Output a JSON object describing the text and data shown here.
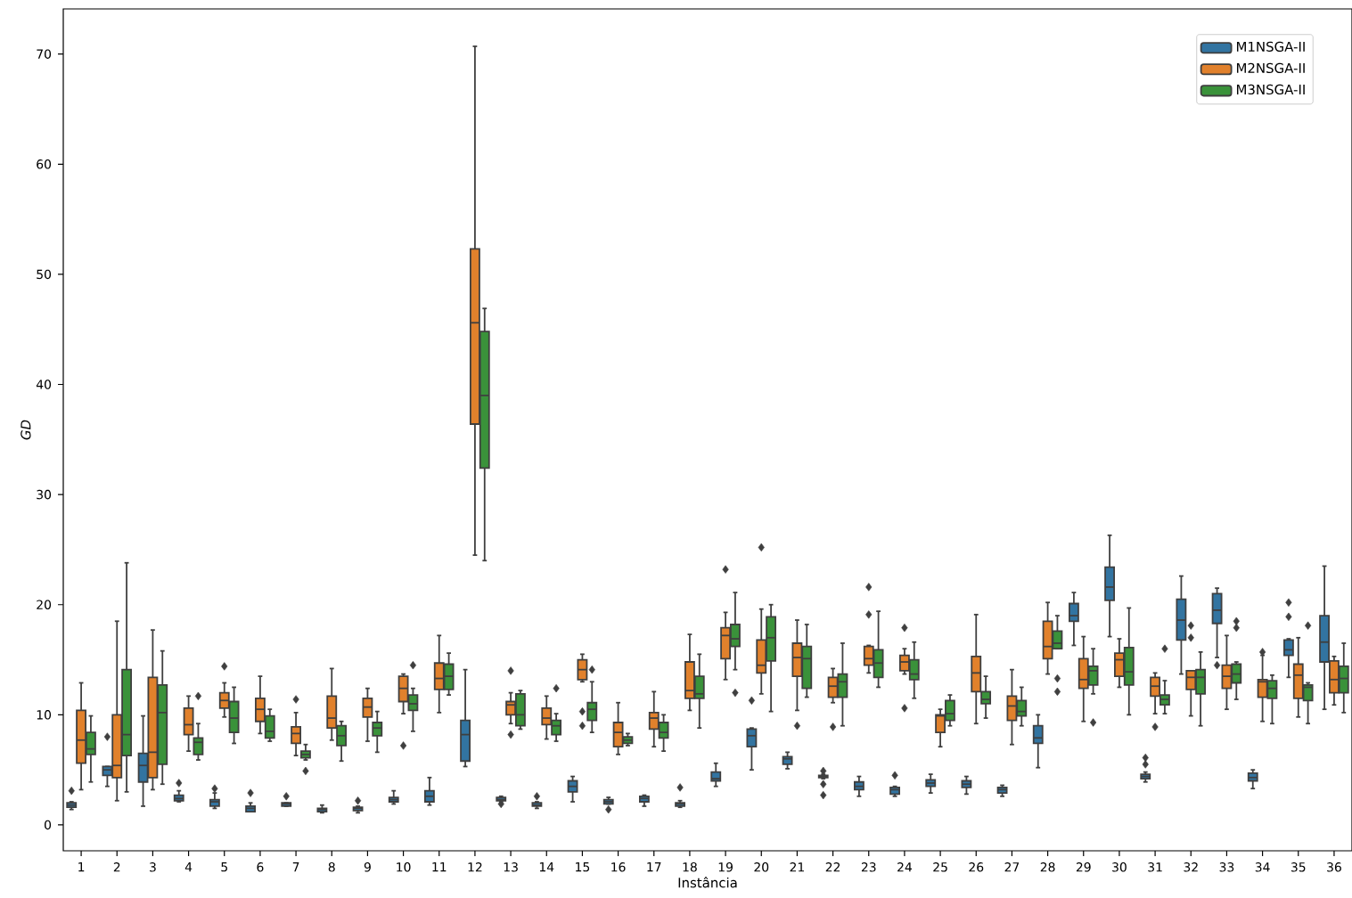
{
  "chart_data": {
    "type": "box",
    "xlabel": "Instância",
    "ylabel": "GD",
    "categories": [
      "1",
      "2",
      "3",
      "4",
      "5",
      "6",
      "7",
      "8",
      "9",
      "10",
      "11",
      "12",
      "13",
      "14",
      "15",
      "16",
      "17",
      "18",
      "19",
      "20",
      "21",
      "22",
      "23",
      "24",
      "25",
      "26",
      "27",
      "28",
      "29",
      "30",
      "31",
      "32",
      "33",
      "34",
      "35",
      "36"
    ],
    "ylim": [
      -2.35,
      74.1
    ],
    "yticks": [
      0,
      10,
      20,
      30,
      40,
      50,
      60,
      70
    ],
    "legend": "top right",
    "grid": false,
    "marker": "diamond",
    "series": [
      {
        "name": "M1NSGA-II",
        "color": "#3274a1",
        "boxes": [
          {
            "low": 1.4,
            "q1": 1.6,
            "median": 1.8,
            "q3": 2.0,
            "high": 2.1,
            "outliers": [
              3.1
            ]
          },
          {
            "low": 3.5,
            "q1": 4.5,
            "median": 5.0,
            "q3": 5.3,
            "high": 5.3,
            "outliers": [
              8.0
            ]
          },
          {
            "low": 1.7,
            "q1": 3.9,
            "median": 5.4,
            "q3": 6.5,
            "high": 9.9
          },
          {
            "low": 2.1,
            "q1": 2.2,
            "median": 2.4,
            "q3": 2.7,
            "high": 3.1,
            "outliers": [
              3.8
            ]
          },
          {
            "low": 1.5,
            "q1": 1.7,
            "median": 2.1,
            "q3": 2.3,
            "high": 2.9,
            "outliers": [
              3.3
            ]
          },
          {
            "low": 1.2,
            "q1": 1.2,
            "median": 1.5,
            "q3": 1.7,
            "high": 2.0,
            "outliers": [
              2.9
            ]
          },
          {
            "low": 1.7,
            "q1": 1.7,
            "median": 1.9,
            "q3": 2.0,
            "high": 2.0,
            "outliers": [
              2.6
            ]
          },
          {
            "low": 1.1,
            "q1": 1.2,
            "median": 1.4,
            "q3": 1.5,
            "high": 1.8
          },
          {
            "low": 1.1,
            "q1": 1.3,
            "median": 1.5,
            "q3": 1.6,
            "high": 1.7,
            "outliers": [
              2.2
            ]
          },
          {
            "low": 1.9,
            "q1": 2.1,
            "median": 2.3,
            "q3": 2.5,
            "high": 3.1
          },
          {
            "low": 1.8,
            "q1": 2.1,
            "median": 2.6,
            "q3": 3.1,
            "high": 4.3
          },
          {
            "low": 5.3,
            "q1": 5.8,
            "median": 8.2,
            "q3": 9.5,
            "high": 14.1
          },
          {
            "low": 2.1,
            "q1": 2.2,
            "median": 2.3,
            "q3": 2.5,
            "high": 2.6,
            "outliers": [
              1.9
            ]
          },
          {
            "low": 1.5,
            "q1": 1.7,
            "median": 1.8,
            "q3": 2.0,
            "high": 2.1,
            "outliers": [
              2.6
            ]
          },
          {
            "low": 2.1,
            "q1": 3.0,
            "median": 3.5,
            "q3": 4.0,
            "high": 4.4
          },
          {
            "low": 1.9,
            "q1": 1.9,
            "median": 2.1,
            "q3": 2.3,
            "high": 2.5,
            "outliers": [
              1.4
            ]
          },
          {
            "low": 1.7,
            "q1": 2.1,
            "median": 2.4,
            "q3": 2.6,
            "high": 2.7
          },
          {
            "low": 1.6,
            "q1": 1.7,
            "median": 1.9,
            "q3": 2.0,
            "high": 2.2,
            "outliers": [
              3.4
            ]
          },
          {
            "low": 3.5,
            "q1": 4.0,
            "median": 4.2,
            "q3": 4.8,
            "high": 5.6
          },
          {
            "low": 5.0,
            "q1": 7.1,
            "median": 8.1,
            "q3": 8.7,
            "high": 8.8,
            "outliers": [
              11.3
            ]
          },
          {
            "low": 5.1,
            "q1": 5.5,
            "median": 6.0,
            "q3": 6.2,
            "high": 6.6
          },
          {
            "low": 4.2,
            "q1": 4.3,
            "median": 4.4,
            "q3": 4.5,
            "high": 4.6,
            "outliers": [
              4.9,
              3.7,
              2.7
            ]
          },
          {
            "low": 2.6,
            "q1": 3.2,
            "median": 3.5,
            "q3": 3.9,
            "high": 4.4
          },
          {
            "low": 2.6,
            "q1": 2.8,
            "median": 3.2,
            "q3": 3.4,
            "high": 3.5,
            "outliers": [
              4.5
            ]
          },
          {
            "low": 2.9,
            "q1": 3.5,
            "median": 3.8,
            "q3": 4.1,
            "high": 4.6
          },
          {
            "low": 2.8,
            "q1": 3.4,
            "median": 3.7,
            "q3": 4.0,
            "high": 4.4
          },
          {
            "low": 2.6,
            "q1": 2.9,
            "median": 3.2,
            "q3": 3.4,
            "high": 3.6
          },
          {
            "low": 5.2,
            "q1": 7.4,
            "median": 7.9,
            "q3": 9.0,
            "high": 10.0
          },
          {
            "low": 16.3,
            "q1": 18.5,
            "median": 19.0,
            "q3": 20.1,
            "high": 21.1
          },
          {
            "low": 17.1,
            "q1": 20.4,
            "median": 21.6,
            "q3": 23.4,
            "high": 26.3
          },
          {
            "low": 3.9,
            "q1": 4.2,
            "median": 4.4,
            "q3": 4.6,
            "high": 4.8,
            "outliers": [
              6.1,
              5.5
            ]
          },
          {
            "low": 13.7,
            "q1": 16.8,
            "median": 18.6,
            "q3": 20.5,
            "high": 22.6
          },
          {
            "low": 15.2,
            "q1": 18.3,
            "median": 19.5,
            "q3": 21.0,
            "high": 21.5,
            "outliers": [
              14.5
            ]
          },
          {
            "low": 3.3,
            "q1": 4.0,
            "median": 4.3,
            "q3": 4.7,
            "high": 5.0
          },
          {
            "low": 13.4,
            "q1": 15.4,
            "median": 15.9,
            "q3": 16.8,
            "high": 16.9,
            "outliers": [
              20.2,
              18.9
            ]
          },
          {
            "low": 10.5,
            "q1": 14.8,
            "median": 16.6,
            "q3": 19.0,
            "high": 23.5
          }
        ]
      },
      {
        "name": "M2NSGA-II",
        "color": "#e1812c",
        "boxes": [
          {
            "low": 3.2,
            "q1": 5.6,
            "median": 7.7,
            "q3": 10.4,
            "high": 12.9
          },
          {
            "low": 2.2,
            "q1": 4.3,
            "median": 5.4,
            "q3": 10.0,
            "high": 18.5
          },
          {
            "low": 3.2,
            "q1": 4.3,
            "median": 6.6,
            "q3": 13.4,
            "high": 17.7
          },
          {
            "low": 6.7,
            "q1": 8.2,
            "median": 9.1,
            "q3": 10.6,
            "high": 11.7
          },
          {
            "low": 9.8,
            "q1": 10.6,
            "median": 11.3,
            "q3": 12.0,
            "high": 12.9,
            "outliers": [
              14.4
            ]
          },
          {
            "low": 8.3,
            "q1": 9.4,
            "median": 10.5,
            "q3": 11.5,
            "high": 13.5
          },
          {
            "low": 6.3,
            "q1": 7.4,
            "median": 8.3,
            "q3": 8.9,
            "high": 10.2,
            "outliers": [
              11.4
            ]
          },
          {
            "low": 7.7,
            "q1": 8.8,
            "median": 9.7,
            "q3": 11.7,
            "high": 14.2
          },
          {
            "low": 7.6,
            "q1": 9.8,
            "median": 10.7,
            "q3": 11.5,
            "high": 12.4
          },
          {
            "low": 10.1,
            "q1": 11.2,
            "median": 12.4,
            "q3": 13.5,
            "high": 13.7,
            "outliers": [
              7.2
            ]
          },
          {
            "low": 10.2,
            "q1": 12.3,
            "median": 13.3,
            "q3": 14.7,
            "high": 17.2
          },
          {
            "low": 24.5,
            "q1": 36.4,
            "median": 45.6,
            "q3": 52.3,
            "high": 70.7
          },
          {
            "low": 9.2,
            "q1": 10.0,
            "median": 10.9,
            "q3": 11.2,
            "high": 12.0,
            "outliers": [
              14.0,
              8.2
            ]
          },
          {
            "low": 7.8,
            "q1": 9.1,
            "median": 9.7,
            "q3": 10.6,
            "high": 11.7
          },
          {
            "low": 13.0,
            "q1": 13.2,
            "median": 14.1,
            "q3": 15.0,
            "high": 15.5,
            "outliers": [
              10.3,
              9.0
            ]
          },
          {
            "low": 6.4,
            "q1": 7.1,
            "median": 8.4,
            "q3": 9.3,
            "high": 11.1
          },
          {
            "low": 7.1,
            "q1": 8.7,
            "median": 9.7,
            "q3": 10.2,
            "high": 12.1
          },
          {
            "low": 10.4,
            "q1": 11.5,
            "median": 12.2,
            "q3": 14.8,
            "high": 17.3
          },
          {
            "low": 13.2,
            "q1": 15.1,
            "median": 17.2,
            "q3": 17.9,
            "high": 19.3,
            "outliers": [
              23.2
            ]
          },
          {
            "low": 11.9,
            "q1": 13.8,
            "median": 14.5,
            "q3": 16.8,
            "high": 19.6,
            "outliers": [
              25.2
            ]
          },
          {
            "low": 10.4,
            "q1": 13.5,
            "median": 15.2,
            "q3": 16.5,
            "high": 18.6,
            "outliers": [
              9.0
            ]
          },
          {
            "low": 11.1,
            "q1": 11.6,
            "median": 12.6,
            "q3": 13.4,
            "high": 14.2,
            "outliers": [
              8.9
            ]
          },
          {
            "low": 13.8,
            "q1": 14.5,
            "median": 15.1,
            "q3": 16.2,
            "high": 16.3,
            "outliers": [
              21.6,
              19.1
            ]
          },
          {
            "low": 13.7,
            "q1": 14.0,
            "median": 14.8,
            "q3": 15.4,
            "high": 16.0,
            "outliers": [
              17.9,
              10.6
            ]
          },
          {
            "low": 7.1,
            "q1": 8.4,
            "median": 9.9,
            "q3": 10.0,
            "high": 10.5
          },
          {
            "low": 9.2,
            "q1": 12.1,
            "median": 13.8,
            "q3": 15.3,
            "high": 19.1
          },
          {
            "low": 7.3,
            "q1": 9.5,
            "median": 10.8,
            "q3": 11.7,
            "high": 14.1
          },
          {
            "low": 13.7,
            "q1": 15.1,
            "median": 16.2,
            "q3": 18.5,
            "high": 20.2
          },
          {
            "low": 9.4,
            "q1": 12.4,
            "median": 13.2,
            "q3": 15.1,
            "high": 17.1
          },
          {
            "low": 12.5,
            "q1": 13.5,
            "median": 15.0,
            "q3": 15.6,
            "high": 16.9
          },
          {
            "low": 10.1,
            "q1": 11.7,
            "median": 12.6,
            "q3": 13.4,
            "high": 13.8,
            "outliers": [
              8.9
            ]
          },
          {
            "low": 9.9,
            "q1": 12.3,
            "median": 13.4,
            "q3": 14.0,
            "high": 14.0,
            "outliers": [
              18.1,
              17.0
            ]
          },
          {
            "low": 10.5,
            "q1": 12.4,
            "median": 13.5,
            "q3": 14.5,
            "high": 17.2
          },
          {
            "low": 9.4,
            "q1": 11.6,
            "median": 13.0,
            "q3": 13.2,
            "high": 15.4,
            "outliers": [
              15.7
            ]
          },
          {
            "low": 9.8,
            "q1": 11.5,
            "median": 13.6,
            "q3": 14.6,
            "high": 17.0
          },
          {
            "low": 10.9,
            "q1": 12.0,
            "median": 13.2,
            "q3": 14.9,
            "high": 15.3
          }
        ]
      },
      {
        "name": "M3NSGA-II",
        "color": "#3a923a",
        "boxes": [
          {
            "low": 3.9,
            "q1": 6.4,
            "median": 6.9,
            "q3": 8.4,
            "high": 9.9
          },
          {
            "low": 3.0,
            "q1": 6.3,
            "median": 8.2,
            "q3": 14.1,
            "high": 23.8
          },
          {
            "low": 3.7,
            "q1": 5.5,
            "median": 10.2,
            "q3": 12.7,
            "high": 15.8
          },
          {
            "low": 5.9,
            "q1": 6.4,
            "median": 7.5,
            "q3": 7.9,
            "high": 9.2,
            "outliers": [
              11.7
            ]
          },
          {
            "low": 7.4,
            "q1": 8.4,
            "median": 9.7,
            "q3": 11.2,
            "high": 12.5
          },
          {
            "low": 7.6,
            "q1": 7.9,
            "median": 8.5,
            "q3": 9.9,
            "high": 10.5
          },
          {
            "low": 5.9,
            "q1": 6.1,
            "median": 6.4,
            "q3": 6.7,
            "high": 7.3,
            "outliers": [
              4.9
            ]
          },
          {
            "low": 5.8,
            "q1": 7.2,
            "median": 8.1,
            "q3": 9.0,
            "high": 9.4
          },
          {
            "low": 6.6,
            "q1": 8.1,
            "median": 8.8,
            "q3": 9.3,
            "high": 10.3
          },
          {
            "low": 8.5,
            "q1": 10.4,
            "median": 11.0,
            "q3": 11.8,
            "high": 12.4,
            "outliers": [
              14.5
            ]
          },
          {
            "low": 11.8,
            "q1": 12.3,
            "median": 13.5,
            "q3": 14.6,
            "high": 15.6
          },
          {
            "low": 24.0,
            "q1": 32.4,
            "median": 39.0,
            "q3": 44.8,
            "high": 46.9
          },
          {
            "low": 8.7,
            "q1": 9.0,
            "median": 10.0,
            "q3": 11.9,
            "high": 12.2
          },
          {
            "low": 7.6,
            "q1": 8.2,
            "median": 9.0,
            "q3": 9.5,
            "high": 10.1,
            "outliers": [
              12.4
            ]
          },
          {
            "low": 8.4,
            "q1": 9.5,
            "median": 10.5,
            "q3": 11.1,
            "high": 13.0,
            "outliers": [
              14.1
            ]
          },
          {
            "low": 7.2,
            "q1": 7.4,
            "median": 7.7,
            "q3": 8.0,
            "high": 8.3
          },
          {
            "low": 6.7,
            "q1": 7.9,
            "median": 8.4,
            "q3": 9.3,
            "high": 10.0
          },
          {
            "low": 8.8,
            "q1": 11.5,
            "median": 11.9,
            "q3": 13.5,
            "high": 15.5
          },
          {
            "low": 14.1,
            "q1": 16.2,
            "median": 16.9,
            "q3": 18.2,
            "high": 21.1,
            "outliers": [
              12.0
            ]
          },
          {
            "low": 10.3,
            "q1": 14.9,
            "median": 17.0,
            "q3": 18.9,
            "high": 20.0
          },
          {
            "low": 11.6,
            "q1": 12.4,
            "median": 15.1,
            "q3": 16.2,
            "high": 18.2
          },
          {
            "low": 9.0,
            "q1": 11.6,
            "median": 13.0,
            "q3": 13.7,
            "high": 16.5
          },
          {
            "low": 12.5,
            "q1": 13.4,
            "median": 14.7,
            "q3": 15.9,
            "high": 19.4
          },
          {
            "low": 11.5,
            "q1": 13.2,
            "median": 13.7,
            "q3": 15.0,
            "high": 16.6
          },
          {
            "low": 9.0,
            "q1": 9.5,
            "median": 10.1,
            "q3": 11.3,
            "high": 11.8
          },
          {
            "low": 9.7,
            "q1": 11.0,
            "median": 11.4,
            "q3": 12.1,
            "high": 13.5
          },
          {
            "low": 9.0,
            "q1": 9.9,
            "median": 10.3,
            "q3": 11.3,
            "high": 12.5
          },
          {
            "low": 16.0,
            "q1": 16.0,
            "median": 16.5,
            "q3": 17.6,
            "high": 19.0,
            "outliers": [
              13.3,
              12.1
            ]
          },
          {
            "low": 11.9,
            "q1": 12.7,
            "median": 14.0,
            "q3": 14.4,
            "high": 16.0,
            "outliers": [
              9.3
            ]
          },
          {
            "low": 10.0,
            "q1": 12.7,
            "median": 13.9,
            "q3": 16.1,
            "high": 19.7
          },
          {
            "low": 10.1,
            "q1": 10.9,
            "median": 11.4,
            "q3": 11.8,
            "high": 13.1,
            "outliers": [
              16.0
            ]
          },
          {
            "low": 9.0,
            "q1": 11.9,
            "median": 13.4,
            "q3": 14.1,
            "high": 15.7
          },
          {
            "low": 11.4,
            "q1": 12.9,
            "median": 13.7,
            "q3": 14.6,
            "high": 14.8,
            "outliers": [
              18.5,
              17.9
            ]
          },
          {
            "low": 9.2,
            "q1": 11.5,
            "median": 12.4,
            "q3": 13.1,
            "high": 13.6
          },
          {
            "low": 9.2,
            "q1": 11.3,
            "median": 12.5,
            "q3": 12.7,
            "high": 12.9,
            "outliers": [
              18.1
            ]
          },
          {
            "low": 10.2,
            "q1": 12.0,
            "median": 13.3,
            "q3": 14.4,
            "high": 16.5
          }
        ]
      }
    ]
  }
}
